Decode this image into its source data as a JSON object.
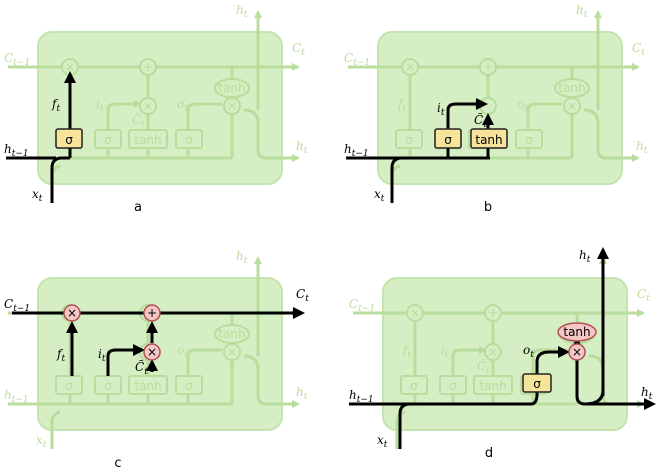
{
  "labels": {
    "c_prev": "C",
    "c_prev_sub": "t−1",
    "c_t": "C",
    "c_t_sub": "t",
    "h_prev": "h",
    "h_prev_sub": "t−1",
    "h_t": "h",
    "h_t_sub": "t",
    "x_t": "x",
    "x_t_sub": "t",
    "f_t": "f",
    "f_t_sub": "t",
    "i_t": "i",
    "i_t_sub": "t",
    "o_t": "o",
    "o_t_sub": "t",
    "c_tilde": "C̃",
    "c_tilde_sub": "t"
  },
  "glyphs": {
    "sigma": "σ",
    "tanh": "tanh",
    "times": "×",
    "plus": "+"
  },
  "captions": {
    "a": "a",
    "b": "b",
    "c": "c",
    "d": "d"
  }
}
